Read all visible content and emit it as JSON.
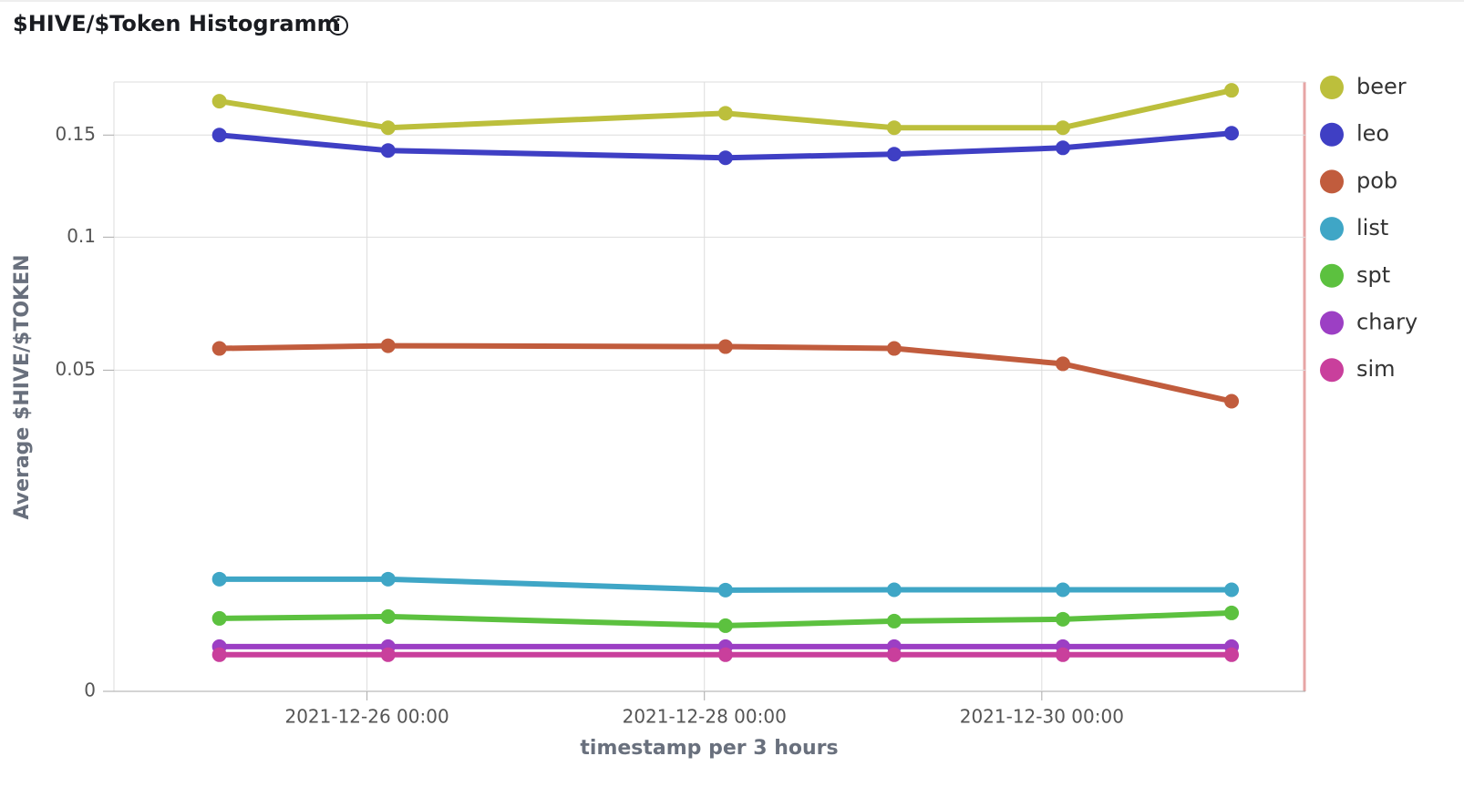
{
  "chart_data": {
    "type": "line",
    "title": "$HIVE/$Token Histogramm",
    "x_label": "timestamp per 3 hours",
    "y_label": "Average $HIVE/$TOKEN",
    "y_scale": "sqrt",
    "grid": true,
    "legend": "right",
    "x": [
      "2021-12-25 03:00",
      "2021-12-26 03:00",
      "2021-12-28 03:00",
      "2021-12-29 03:00",
      "2021-12-30 03:00",
      "2021-12-31 03:00"
    ],
    "xlim": [
      "2021-12-24 12:00",
      "2021-12-31 13:30"
    ],
    "xticks": [
      "2021-12-26 00:00",
      "2021-12-28 00:00",
      "2021-12-30 00:00"
    ],
    "ylim": [
      0,
      0.18
    ],
    "yticks": [
      0,
      0.05,
      0.1,
      0.15
    ],
    "series": [
      {
        "name": "beer",
        "color": "#bcbf3c",
        "values": [
          0.1688,
          0.154,
          0.162,
          0.154,
          0.154,
          0.1751
        ]
      },
      {
        "name": "leo",
        "color": "#3f3fc4",
        "values": [
          0.15,
          0.1418,
          0.138,
          0.1399,
          0.1432,
          0.151
        ]
      },
      {
        "name": "pob",
        "color": "#c15c3d",
        "values": [
          0.057,
          0.0579,
          0.0576,
          0.057,
          0.052,
          0.0408
        ]
      },
      {
        "name": "list",
        "color": "#3fa6c6",
        "values": [
          0.0061,
          0.0061,
          0.00497,
          0.005,
          0.005,
          0.005
        ]
      },
      {
        "name": "spt",
        "color": "#5cc13f",
        "values": [
          0.00258,
          0.00271,
          0.00209,
          0.00239,
          0.00252,
          0.00298
        ]
      },
      {
        "name": "chary",
        "color": "#9c3fc4",
        "values": [
          0.00097,
          0.00097,
          0.00097,
          0.00097,
          0.00097,
          0.00097
        ]
      },
      {
        "name": "sim",
        "color": "#c93f9c",
        "values": [
          0.00065,
          0.00065,
          0.00065,
          0.00065,
          0.00065,
          0.00065
        ]
      }
    ]
  }
}
